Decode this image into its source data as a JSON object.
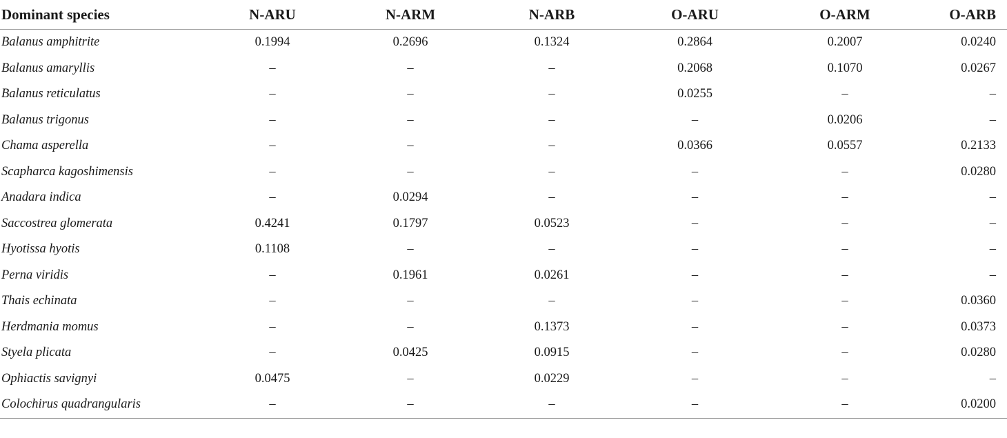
{
  "table": {
    "headers": [
      "Dominant species",
      "N-ARU",
      "N-ARM",
      "N-ARB",
      "O-ARU",
      "O-ARM",
      "O-ARB"
    ],
    "rows": [
      [
        "Balanus amphitrite",
        "0.1994",
        "0.2696",
        "0.1324",
        "0.2864",
        "0.2007",
        "0.0240"
      ],
      [
        "Balanus amaryllis",
        "–",
        "–",
        "–",
        "0.2068",
        "0.1070",
        "0.0267"
      ],
      [
        "Balanus reticulatus",
        "–",
        "–",
        "–",
        "0.0255",
        "–",
        "–"
      ],
      [
        "Balanus trigonus",
        "–",
        "–",
        "–",
        "–",
        "0.0206",
        "–"
      ],
      [
        "Chama asperella",
        "–",
        "–",
        "–",
        "0.0366",
        "0.0557",
        "0.2133"
      ],
      [
        "Scapharca kagoshimensis",
        "–",
        "–",
        "–",
        "–",
        "–",
        "0.0280"
      ],
      [
        "Anadara indica",
        "–",
        "0.0294",
        "–",
        "–",
        "–",
        "–"
      ],
      [
        "Saccostrea glomerata",
        "0.4241",
        "0.1797",
        "0.0523",
        "–",
        "–",
        "–"
      ],
      [
        "Hyotissa hyotis",
        "0.1108",
        "–",
        "–",
        "–",
        "–",
        "–"
      ],
      [
        "Perna viridis",
        "–",
        "0.1961",
        "0.0261",
        "–",
        "–",
        "–"
      ],
      [
        "Thais echinata",
        "–",
        "–",
        "–",
        "–",
        "–",
        "0.0360"
      ],
      [
        "Herdmania momus",
        "–",
        "–",
        "0.1373",
        "–",
        "–",
        "0.0373"
      ],
      [
        "Styela plicata",
        "–",
        "0.0425",
        "0.0915",
        "–",
        "–",
        "0.0280"
      ],
      [
        "Ophiactis savignyi",
        "0.0475",
        "–",
        "0.0229",
        "–",
        "–",
        "–"
      ],
      [
        "Colochirus quadrangularis",
        "–",
        "–",
        "–",
        "–",
        "–",
        "0.0200"
      ]
    ]
  }
}
